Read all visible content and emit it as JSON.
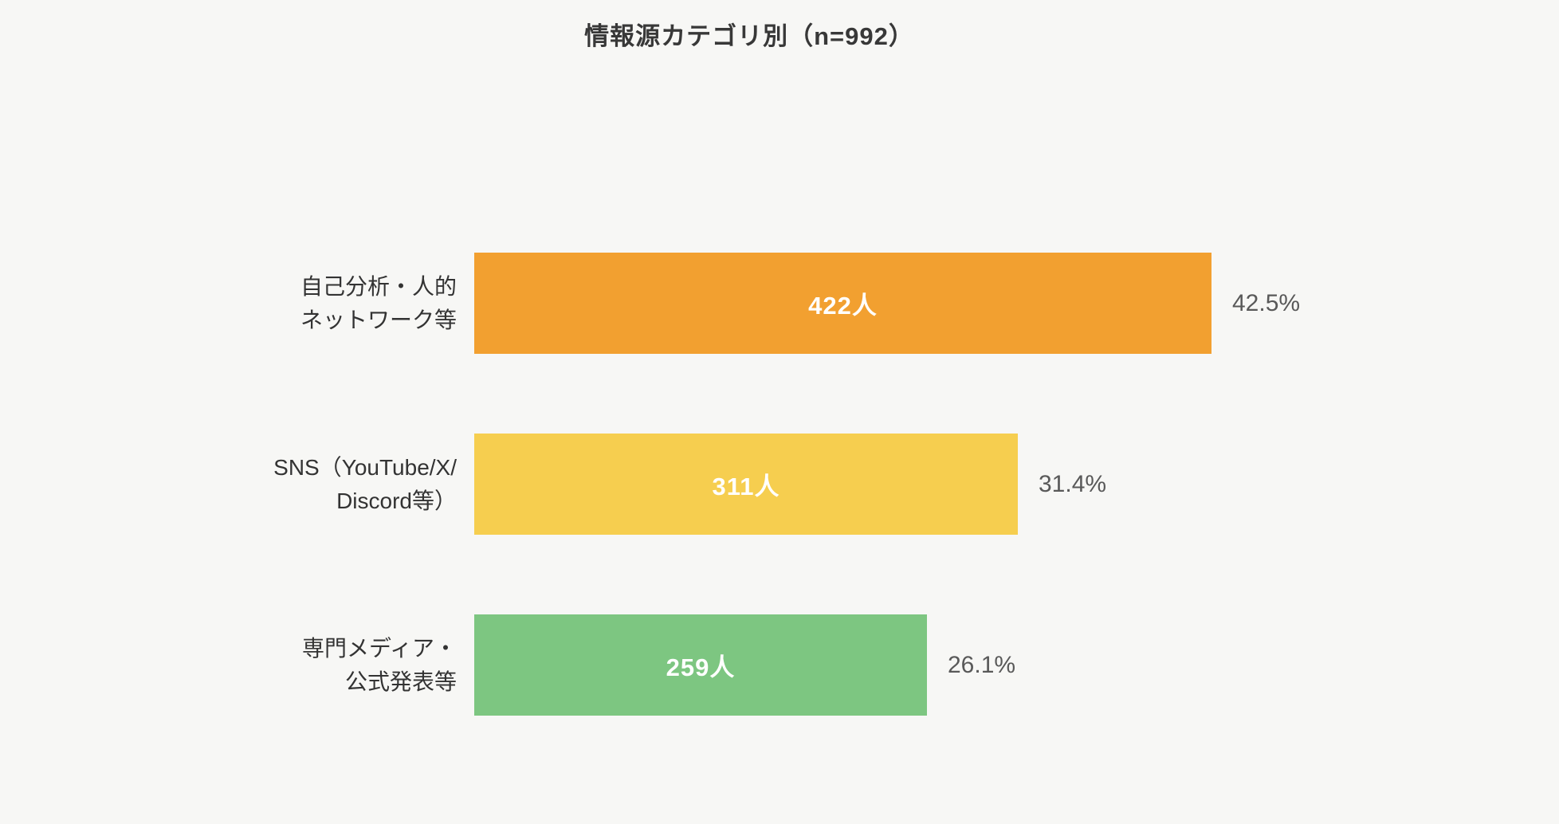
{
  "page": {
    "background": "#f7f7f5"
  },
  "chart_data": {
    "type": "bar",
    "orientation": "horizontal",
    "title": "情報源カテゴリ別（n=992）",
    "n_total": 992,
    "categories": [
      "自己分析・人的ネットワーク等",
      "SNS（YouTube/X/Discord等）",
      "専門メディア・公式発表等"
    ],
    "values": [
      422,
      311,
      259
    ],
    "percentages": [
      42.5,
      31.4,
      26.1
    ],
    "xlim": [
      0,
      470
    ],
    "legend": "none",
    "grid": false,
    "rows": [
      {
        "label": "自己分析・人的\nネットワーク等",
        "value": 422,
        "value_label": "422人",
        "percent_label": "42.5%",
        "color": "#f2a030"
      },
      {
        "label": "SNS（YouTube/X/\nDiscord等）",
        "value": 311,
        "value_label": "311人",
        "percent_label": "31.4%",
        "color": "#f6ce4f"
      },
      {
        "label": "専門メディア・\n公式発表等",
        "value": 259,
        "value_label": "259人",
        "percent_label": "26.1%",
        "color": "#7dc681"
      }
    ]
  }
}
